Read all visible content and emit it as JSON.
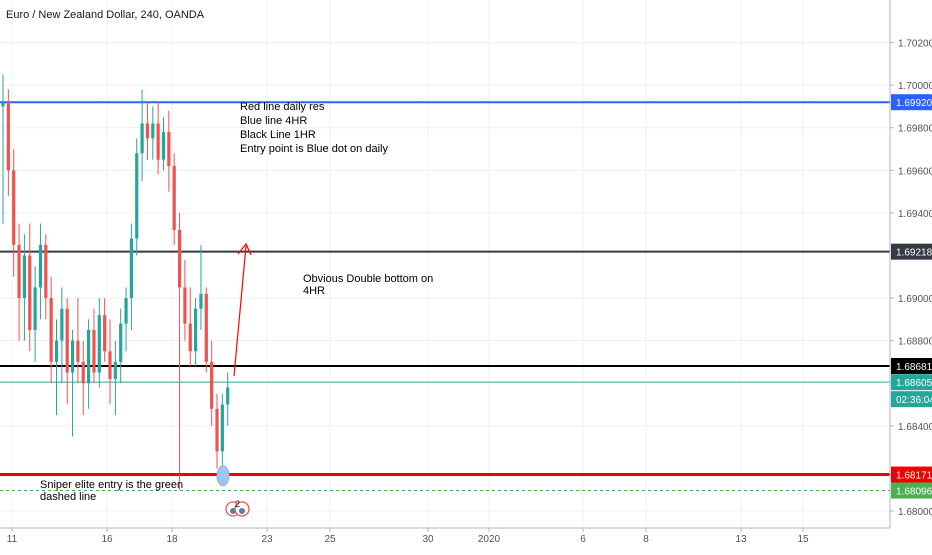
{
  "header": {
    "title": "Euro / New Zealand Dollar, 240, OANDA"
  },
  "chart_data": {
    "type": "candlestick",
    "title": "Euro / New Zealand Dollar, 240, OANDA",
    "ylim": [
      1.6792,
      1.704
    ],
    "grid": true,
    "colors": {
      "up": "#26a69a",
      "down": "#ef5350",
      "wick_up": "#26a69a",
      "wick_down": "#ef5350"
    },
    "y_ticks": [
      "1.70200",
      "1.70000",
      "1.69800",
      "1.69600",
      "1.69400",
      "1.69000",
      "1.68800",
      "1.68400",
      "1.68000"
    ],
    "x_labels": [
      "11",
      "16",
      "18",
      "23",
      "25",
      "30",
      "2020",
      "6",
      "8",
      "13",
      "15"
    ],
    "hlines": [
      {
        "y": 1.6992,
        "label": "1.69920",
        "color": "#2962ff",
        "style": "solid",
        "width": 2
      },
      {
        "y": 1.69218,
        "label": "1.69218",
        "color": "#363a45",
        "style": "solid",
        "width": 2
      },
      {
        "y": 1.68681,
        "label": "1.68681",
        "color": "#000000",
        "style": "solid",
        "width": 2
      },
      {
        "y": 1.68605,
        "label": "1.68605",
        "color": "#26a69a",
        "style": "solid",
        "width": 1
      },
      {
        "y": 1.68171,
        "label": "1.68171",
        "color": "#f00000",
        "style": "solid",
        "width": 3
      },
      {
        "y": 1.68096,
        "label": "1.68096",
        "color": "#4caf50",
        "style": "dashed",
        "width": 1
      }
    ],
    "countdown": {
      "label": "02:36:04",
      "color": "#26a69a"
    },
    "annotations": [
      {
        "lines": [
          "Red line daily res",
          "Blue line 4HR",
          "Black Line 1HR",
          "Entry point is Blue dot on daily"
        ]
      },
      {
        "lines": [
          "Obvious Double bottom on",
          "4HR"
        ]
      },
      {
        "lines": [
          "Sniper elite entry is the green",
          "dashed line"
        ]
      }
    ],
    "entry_marker": {
      "y": 1.68165,
      "color": "#9fc5e8"
    },
    "idea_badge": {
      "count": "2"
    },
    "candles": [
      {
        "o": 1.699,
        "h": 1.7005,
        "l": 1.6935,
        "c": 1.6992
      },
      {
        "o": 1.6992,
        "h": 1.6998,
        "l": 1.6948,
        "c": 1.696
      },
      {
        "o": 1.696,
        "h": 1.697,
        "l": 1.691,
        "c": 1.6925
      },
      {
        "o": 1.6925,
        "h": 1.6935,
        "l": 1.688,
        "c": 1.69
      },
      {
        "o": 1.69,
        "h": 1.693,
        "l": 1.688,
        "c": 1.692
      },
      {
        "o": 1.692,
        "h": 1.6935,
        "l": 1.6875,
        "c": 1.6885
      },
      {
        "o": 1.6885,
        "h": 1.6915,
        "l": 1.687,
        "c": 1.6905
      },
      {
        "o": 1.6905,
        "h": 1.6935,
        "l": 1.689,
        "c": 1.6925
      },
      {
        "o": 1.6925,
        "h": 1.693,
        "l": 1.689,
        "c": 1.69
      },
      {
        "o": 1.69,
        "h": 1.691,
        "l": 1.686,
        "c": 1.687
      },
      {
        "o": 1.687,
        "h": 1.689,
        "l": 1.6845,
        "c": 1.688
      },
      {
        "o": 1.688,
        "h": 1.6905,
        "l": 1.686,
        "c": 1.6895
      },
      {
        "o": 1.6895,
        "h": 1.69,
        "l": 1.685,
        "c": 1.6865
      },
      {
        "o": 1.6865,
        "h": 1.6885,
        "l": 1.6835,
        "c": 1.688
      },
      {
        "o": 1.688,
        "h": 1.69,
        "l": 1.686,
        "c": 1.687
      },
      {
        "o": 1.687,
        "h": 1.688,
        "l": 1.6845,
        "c": 1.686
      },
      {
        "o": 1.686,
        "h": 1.689,
        "l": 1.6848,
        "c": 1.6885
      },
      {
        "o": 1.6885,
        "h": 1.6895,
        "l": 1.686,
        "c": 1.6865
      },
      {
        "o": 1.6865,
        "h": 1.69,
        "l": 1.6858,
        "c": 1.6892
      },
      {
        "o": 1.6892,
        "h": 1.69,
        "l": 1.687,
        "c": 1.6875
      },
      {
        "o": 1.6875,
        "h": 1.689,
        "l": 1.685,
        "c": 1.6862
      },
      {
        "o": 1.6862,
        "h": 1.688,
        "l": 1.6845,
        "c": 1.687
      },
      {
        "o": 1.687,
        "h": 1.6895,
        "l": 1.686,
        "c": 1.6888
      },
      {
        "o": 1.6888,
        "h": 1.6905,
        "l": 1.6875,
        "c": 1.69
      },
      {
        "o": 1.69,
        "h": 1.6935,
        "l": 1.6885,
        "c": 1.6928
      },
      {
        "o": 1.6928,
        "h": 1.6975,
        "l": 1.692,
        "c": 1.6968
      },
      {
        "o": 1.6968,
        "h": 1.6998,
        "l": 1.6955,
        "c": 1.6982
      },
      {
        "o": 1.6982,
        "h": 1.6992,
        "l": 1.6965,
        "c": 1.6975
      },
      {
        "o": 1.6975,
        "h": 1.699,
        "l": 1.6965,
        "c": 1.6982
      },
      {
        "o": 1.6982,
        "h": 1.6992,
        "l": 1.6958,
        "c": 1.6965
      },
      {
        "o": 1.6965,
        "h": 1.6985,
        "l": 1.696,
        "c": 1.6978
      },
      {
        "o": 1.6978,
        "h": 1.6988,
        "l": 1.695,
        "c": 1.6962
      },
      {
        "o": 1.6962,
        "h": 1.6968,
        "l": 1.6925,
        "c": 1.6932
      },
      {
        "o": 1.6932,
        "h": 1.694,
        "l": 1.681,
        "c": 1.6905
      },
      {
        "o": 1.6905,
        "h": 1.6918,
        "l": 1.688,
        "c": 1.6888
      },
      {
        "o": 1.6888,
        "h": 1.6905,
        "l": 1.6868,
        "c": 1.6875
      },
      {
        "o": 1.6875,
        "h": 1.69,
        "l": 1.6868,
        "c": 1.6895
      },
      {
        "o": 1.6895,
        "h": 1.6925,
        "l": 1.6885,
        "c": 1.6902
      },
      {
        "o": 1.6902,
        "h": 1.6905,
        "l": 1.6865,
        "c": 1.687
      },
      {
        "o": 1.687,
        "h": 1.688,
        "l": 1.684,
        "c": 1.6848
      },
      {
        "o": 1.6848,
        "h": 1.6855,
        "l": 1.682,
        "c": 1.6828
      },
      {
        "o": 1.6828,
        "h": 1.6855,
        "l": 1.6815,
        "c": 1.685
      },
      {
        "o": 1.685,
        "h": 1.6865,
        "l": 1.684,
        "c": 1.6858
      }
    ]
  }
}
